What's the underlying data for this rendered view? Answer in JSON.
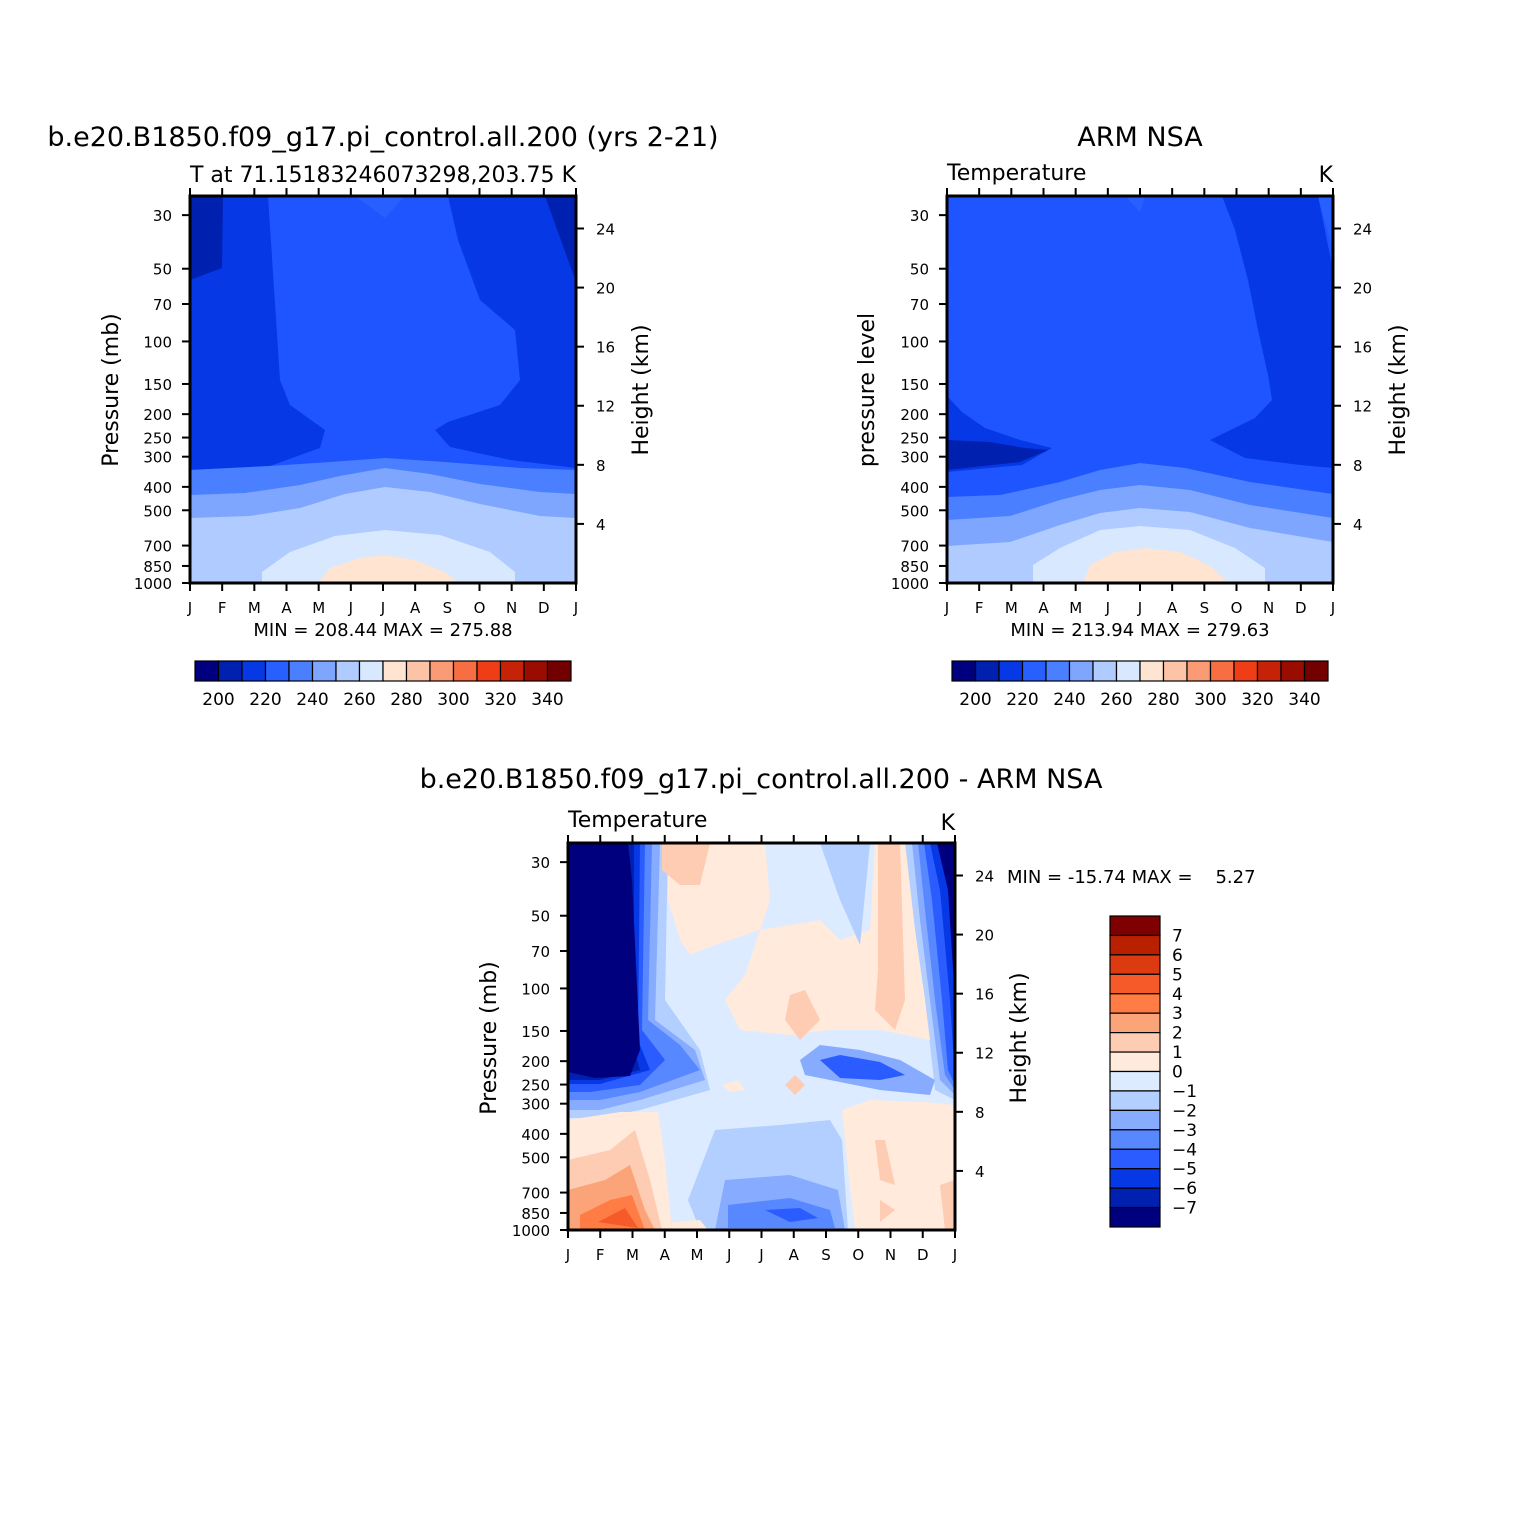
{
  "chart_data": [
    {
      "type": "heatmap",
      "title": "b.e20.B1850.f09_g17.pi_control.all.200 (yrs 2-21)",
      "left_subtitle": "T at 71.15183246073298,203.75",
      "right_subtitle": "K",
      "ylabel": "Pressure (mb)",
      "ylabel_right": "Height (km)",
      "x_ticks": [
        "J",
        "F",
        "M",
        "A",
        "M",
        "J",
        "J",
        "A",
        "S",
        "O",
        "N",
        "D",
        "J"
      ],
      "y_ticks": [
        30,
        50,
        70,
        100,
        150,
        200,
        250,
        300,
        400,
        500,
        700,
        850,
        1000
      ],
      "y_ticks_right": [
        24,
        20,
        16,
        12,
        8,
        4
      ],
      "stats": "MIN = 208.44 MAX = 275.88",
      "colorbar": {
        "ticks": [
          "200",
          "220",
          "240",
          "260",
          "280",
          "300",
          "320",
          "340"
        ],
        "colors": [
          "#00007f",
          "#0020b0",
          "#0638e6",
          "#2860ff",
          "#4a80ff",
          "#7ea6ff",
          "#b0cbff",
          "#d8e8ff",
          "#ffe4d2",
          "#fdc3a7",
          "#fa9b76",
          "#f66e42",
          "#ee3d17",
          "#c62208",
          "#9a0c00",
          "#730000"
        ]
      },
      "levels": [
        {
          "range": "< 210",
          "color": "#0020b0"
        },
        {
          "range": "210-220",
          "color": "#0638e6"
        },
        {
          "range": "220-230",
          "color": "#1f55ff"
        },
        {
          "range": "230-240",
          "color": "#4a80ff"
        },
        {
          "range": "240-250",
          "color": "#7ea6ff"
        },
        {
          "range": "250-260",
          "color": "#b0cbff"
        },
        {
          "range": "260-270",
          "color": "#d8e8ff"
        },
        {
          "range": "270-280",
          "color": "#ffe4d2"
        }
      ]
    },
    {
      "type": "heatmap",
      "title": "ARM NSA",
      "left_subtitle": "Temperature",
      "right_subtitle": "K",
      "ylabel": "pressure level",
      "ylabel_right": "Height (km)",
      "x_ticks": [
        "J",
        "F",
        "M",
        "A",
        "M",
        "J",
        "J",
        "A",
        "S",
        "O",
        "N",
        "D",
        "J"
      ],
      "y_ticks": [
        30,
        50,
        70,
        100,
        150,
        200,
        250,
        300,
        400,
        500,
        700,
        850,
        1000
      ],
      "y_ticks_right": [
        24,
        20,
        16,
        12,
        8,
        4
      ],
      "stats": "MIN = 213.94 MAX = 279.63",
      "colorbar": {
        "ticks": [
          "200",
          "220",
          "240",
          "260",
          "280",
          "300",
          "320",
          "340"
        ],
        "colors": [
          "#00007f",
          "#0020b0",
          "#0638e6",
          "#2860ff",
          "#4a80ff",
          "#7ea6ff",
          "#b0cbff",
          "#d8e8ff",
          "#ffe4d2",
          "#fdc3a7",
          "#fa9b76",
          "#f66e42",
          "#ee3d17",
          "#c62208",
          "#9a0c00",
          "#730000"
        ]
      }
    },
    {
      "type": "heatmap",
      "title": "b.e20.B1850.f09_g17.pi_control.all.200 - ARM NSA",
      "left_subtitle": "Temperature",
      "right_subtitle": "K",
      "ylabel": "Pressure (mb)",
      "ylabel_right": "Height (km)",
      "x_ticks": [
        "J",
        "F",
        "M",
        "A",
        "M",
        "J",
        "J",
        "A",
        "S",
        "O",
        "N",
        "D",
        "J"
      ],
      "y_ticks": [
        30,
        50,
        70,
        100,
        150,
        200,
        250,
        300,
        400,
        500,
        700,
        850,
        1000
      ],
      "y_ticks_right": [
        24,
        20,
        16,
        12,
        8,
        4
      ],
      "stats": "MIN = -15.74 MAX =    5.27",
      "colorbar": {
        "ticks": [
          "7",
          "6",
          "5",
          "4",
          "3",
          "2",
          "1",
          "0",
          "-1",
          "-2",
          "-3",
          "-4",
          "-5",
          "-6",
          "-7"
        ],
        "colors": [
          "#7f0000",
          "#b82000",
          "#dc3a10",
          "#f55a28",
          "#ff7c45",
          "#fba47a",
          "#fdccb2",
          "#ffeadc",
          "#dcebff",
          "#b3cfff",
          "#86abff",
          "#5888ff",
          "#2a5cff",
          "#0638e6",
          "#0020b0",
          "#00007f"
        ]
      }
    }
  ]
}
